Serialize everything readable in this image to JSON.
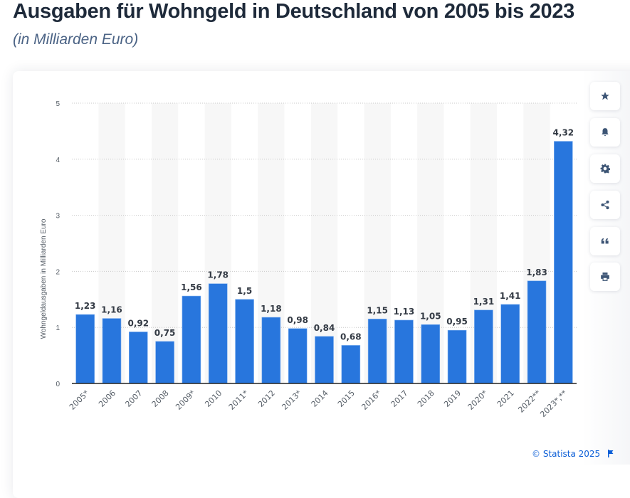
{
  "header": {
    "title": "Ausgaben für Wohngeld in Deutschland von 2005 bis 2023",
    "subtitle": "(in Milliarden Euro)"
  },
  "toolbar": [
    {
      "name": "favorite-button",
      "icon": "star-icon"
    },
    {
      "name": "notification-button",
      "icon": "bell-icon"
    },
    {
      "name": "settings-button",
      "icon": "gear-icon"
    },
    {
      "name": "share-button",
      "icon": "share-icon"
    },
    {
      "name": "cite-button",
      "icon": "quote-icon"
    },
    {
      "name": "print-button",
      "icon": "printer-icon"
    }
  ],
  "footer": {
    "copyright": "© Statista 2025",
    "flag_icon": "flag-icon"
  },
  "colors": {
    "bar": "#2876dd",
    "band": "#f7f7f7",
    "accent": "#0b5ed7"
  },
  "chart_data": {
    "type": "bar",
    "title": "Ausgaben für Wohngeld in Deutschland von 2005 bis 2023",
    "subtitle": "(in Milliarden Euro)",
    "xlabel": "",
    "ylabel": "Wohngeldausgaben in Milliarden Euro",
    "ylim": [
      0,
      5
    ],
    "yticks": [
      0,
      1,
      2,
      3,
      4,
      5
    ],
    "grid": true,
    "legend": "none",
    "categories": [
      "2005*",
      "2006",
      "2007",
      "2008",
      "2009*",
      "2010",
      "2011*",
      "2012",
      "2013*",
      "2014",
      "2015",
      "2016*",
      "2017",
      "2018",
      "2019",
      "2020*",
      "2021",
      "2022**",
      "2023*,**"
    ],
    "values": [
      1.23,
      1.16,
      0.92,
      0.75,
      1.56,
      1.78,
      1.5,
      1.18,
      0.98,
      0.84,
      0.68,
      1.15,
      1.13,
      1.05,
      0.95,
      1.31,
      1.41,
      1.83,
      4.32
    ],
    "value_labels": [
      "1,23",
      "1,16",
      "0,92",
      "0,75",
      "1,56",
      "1,78",
      "1,5",
      "1,18",
      "0,98",
      "0,84",
      "0,68",
      "1,15",
      "1,13",
      "1,05",
      "0,95",
      "1,31",
      "1,41",
      "1,83",
      "4,32"
    ]
  }
}
